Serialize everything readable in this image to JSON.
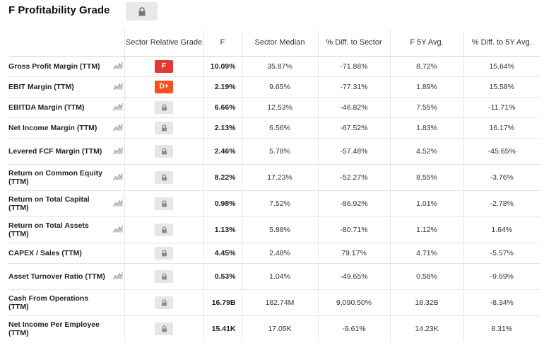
{
  "header": {
    "title": "F Profitability Grade"
  },
  "columns": {
    "grade": "Sector Relative Grade",
    "f": "F",
    "median": "Sector Median",
    "diff": "% Diff. to Sector",
    "avg": "F 5Y Avg.",
    "avgdiff": "% Diff. to 5Y Avg."
  },
  "colors": {
    "grade_F": "#e53935",
    "grade_Dplus": "#f4511e",
    "locked": "#e6e6e6"
  },
  "rows": [
    {
      "metric": "Gross Profit Margin (TTM)",
      "chart": true,
      "grade": "F",
      "f": "10.09%",
      "median": "35.87%",
      "diff": "-71.88%",
      "avg": "8.72%",
      "avgdiff": "15.64%"
    },
    {
      "metric": "EBIT Margin (TTM)",
      "chart": true,
      "grade": "D+",
      "f": "2.19%",
      "median": "9.65%",
      "diff": "-77.31%",
      "avg": "1.89%",
      "avgdiff": "15.58%"
    },
    {
      "metric": "EBITDA Margin (TTM)",
      "chart": true,
      "grade": "",
      "f": "6.66%",
      "median": "12.53%",
      "diff": "-46.82%",
      "avg": "7.55%",
      "avgdiff": "-11.71%"
    },
    {
      "metric": "Net Income Margin (TTM)",
      "chart": true,
      "grade": "",
      "f": "2.13%",
      "median": "6.56%",
      "diff": "-67.52%",
      "avg": "1.83%",
      "avgdiff": "16.17%"
    },
    {
      "metric": "Levered FCF Margin (TTM)",
      "chart": true,
      "grade": "",
      "f": "2.46%",
      "median": "5.78%",
      "diff": "-57.48%",
      "avg": "4.52%",
      "avgdiff": "-45.65%"
    },
    {
      "metric": "Return on Common Equity (TTM)",
      "chart": true,
      "grade": "",
      "f": "8.22%",
      "median": "17.23%",
      "diff": "-52.27%",
      "avg": "8.55%",
      "avgdiff": "-3.76%"
    },
    {
      "metric": "Return on Total Capital (TTM)",
      "chart": true,
      "grade": "",
      "f": "0.98%",
      "median": "7.52%",
      "diff": "-86.92%",
      "avg": "1.01%",
      "avgdiff": "-2.78%"
    },
    {
      "metric": "Return on Total Assets (TTM)",
      "chart": true,
      "grade": "",
      "f": "1.13%",
      "median": "5.88%",
      "diff": "-80.71%",
      "avg": "1.12%",
      "avgdiff": "1.64%"
    },
    {
      "metric": "CAPEX / Sales (TTM)",
      "chart": false,
      "grade": "",
      "f": "4.45%",
      "median": "2.48%",
      "diff": "79.17%",
      "avg": "4.71%",
      "avgdiff": "-5.57%"
    },
    {
      "metric": "Asset Turnover Ratio (TTM)",
      "chart": true,
      "grade": "",
      "f": "0.53%",
      "median": "1.04%",
      "diff": "-49.65%",
      "avg": "0.58%",
      "avgdiff": "-9.69%"
    },
    {
      "metric": "Cash From Operations (TTM)",
      "chart": false,
      "grade": "",
      "f": "16.79B",
      "median": "182.74M",
      "diff": "9,090.50%",
      "avg": "18.32B",
      "avgdiff": "-8.34%"
    },
    {
      "metric": "Net Income Per Employee (TTM)",
      "chart": false,
      "grade": "",
      "f": "15.41K",
      "median": "17.05K",
      "diff": "-9.61%",
      "avg": "14.23K",
      "avgdiff": "8.31%"
    }
  ]
}
